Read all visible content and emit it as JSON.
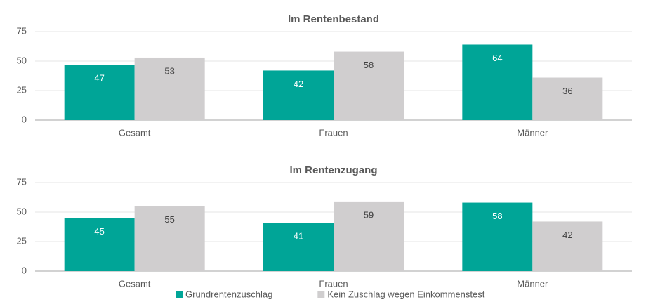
{
  "chart_data": [
    {
      "type": "bar",
      "title": "Im Rentenbestand",
      "categories": [
        "Gesamt",
        "Frauen",
        "Männer"
      ],
      "series": [
        {
          "name": "Grundrentenzuschlag",
          "color": "#00a597",
          "values": [
            47,
            42,
            64
          ]
        },
        {
          "name": "Kein Zuschlag wegen Einkommenstest",
          "color": "#d0cecf",
          "values": [
            53,
            58,
            36
          ]
        }
      ],
      "ylim": [
        0,
        75
      ],
      "yticks": [
        0,
        25,
        50,
        75
      ],
      "grid": true
    },
    {
      "type": "bar",
      "title": "Im Rentenzugang",
      "categories": [
        "Gesamt",
        "Frauen",
        "Männer"
      ],
      "series": [
        {
          "color": "#00a597",
          "values": [
            45,
            41,
            58
          ]
        },
        {
          "color": "#d0cecf",
          "values": [
            55,
            59,
            42
          ]
        }
      ],
      "ylim": [
        0,
        75
      ],
      "yticks": [
        0,
        25,
        50,
        75
      ],
      "grid": true
    }
  ]
}
